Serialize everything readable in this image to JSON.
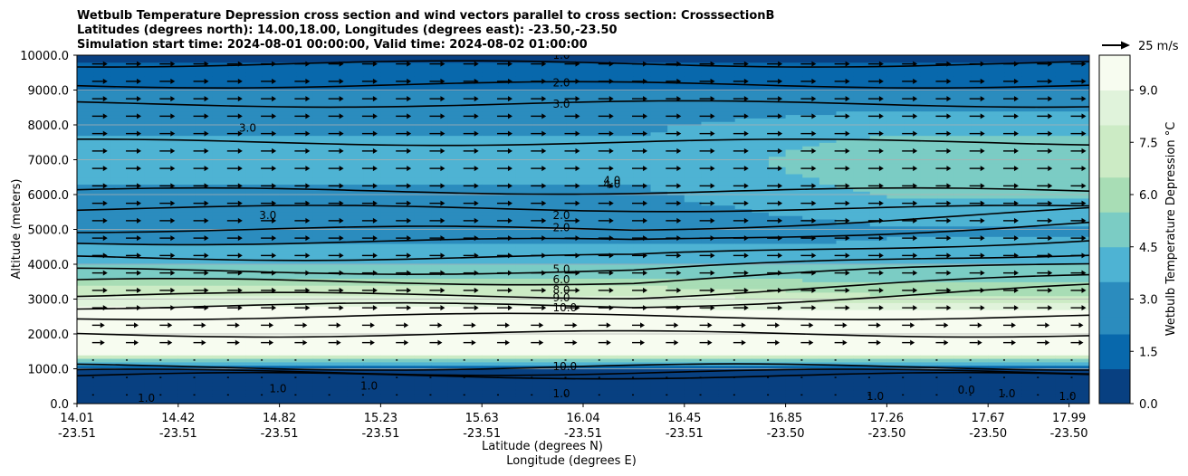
{
  "title_lines": [
    "Wetbulb Temperature Depression cross section and wind vectors parallel to cross section: CrosssectionB",
    "Latitudes (degrees north): 14.00,18.00, Longitudes (degrees east): -23.50,-23.50",
    "Simulation start time: 2024-08-01 00:00:00, Valid time: 2024-08-02 01:00:00"
  ],
  "chart_data": {
    "type": "heatmap",
    "ylabel": "Altitude (meters)",
    "xlabel_lat": "Latitude (degrees N)",
    "xlabel_lon": "Longitude (degrees E)",
    "ylim": [
      0,
      10000
    ],
    "yticks": [
      "0.0",
      "1000.0",
      "2000.0",
      "3000.0",
      "4000.0",
      "5000.0",
      "6000.0",
      "7000.0",
      "8000.0",
      "9000.0",
      "10000.0"
    ],
    "ytick_values": [
      0,
      1000,
      2000,
      3000,
      4000,
      5000,
      6000,
      7000,
      8000,
      9000,
      10000
    ],
    "xtick_positions": [
      0,
      0.1,
      0.2,
      0.3,
      0.4,
      0.5,
      0.6,
      0.7,
      0.8,
      0.9,
      0.98
    ],
    "xticks_lat": [
      "14.01",
      "14.42",
      "14.82",
      "15.23",
      "15.63",
      "16.04",
      "16.45",
      "16.85",
      "17.26",
      "17.67",
      "17.99"
    ],
    "xticks_lon": [
      "-23.51",
      "-23.51",
      "-23.51",
      "-23.51",
      "-23.51",
      "-23.51",
      "-23.51",
      "-23.50",
      "-23.50",
      "-23.50",
      "-23.50"
    ],
    "grid": "horizontal",
    "colorbar": {
      "label": "Wetbulb Temperature Depression °C",
      "range": [
        0,
        10
      ],
      "ticks": [
        "0.0",
        "1.5",
        "3.0",
        "4.5",
        "6.0",
        "7.5",
        "9.0"
      ],
      "tick_values": [
        0,
        1.5,
        3.0,
        4.5,
        6.0,
        7.5,
        9.0
      ],
      "colors": [
        "#084081",
        "#0868ac",
        "#2b8cbe",
        "#4eb3d3",
        "#7bccc4",
        "#a8ddb5",
        "#ccebc5",
        "#e0f3db",
        "#f7fcf0"
      ]
    },
    "quiver_key": {
      "label": "25 m/s",
      "speed": 25
    },
    "contour_labels": [
      "1.0",
      "2.0",
      "3.0",
      "4.0",
      "5.0",
      "6.0",
      "8.0",
      "9.0",
      "10.0",
      "3.0",
      "3.0",
      "4.0",
      "2.0",
      "2.0",
      "1.0",
      "0.0",
      "1.0",
      "1.0",
      "1.0",
      "10.0",
      "1.0",
      "1.0",
      "1.0"
    ],
    "profile": {
      "altitudes": [
        0,
        500,
        1000,
        1500,
        2000,
        2500,
        3000,
        3500,
        4000,
        4500,
        5000,
        5500,
        6000,
        6500,
        7000,
        7500,
        8000,
        8500,
        9000,
        9500,
        10000
      ],
      "depression_south": [
        0.4,
        0.6,
        0.8,
        10,
        10,
        9.5,
        8.5,
        6,
        4.5,
        3.5,
        2.2,
        2.8,
        3.2,
        3.4,
        3.5,
        3.4,
        3.2,
        2.8,
        2.2,
        1.5,
        0.8
      ],
      "depression_north": [
        0.4,
        0.5,
        0.6,
        10,
        10,
        10,
        7,
        5.5,
        4.5,
        3.5,
        3.2,
        4,
        4.5,
        5,
        5.5,
        4.8,
        4,
        3.2,
        2.2,
        1.5,
        0.8
      ]
    }
  }
}
